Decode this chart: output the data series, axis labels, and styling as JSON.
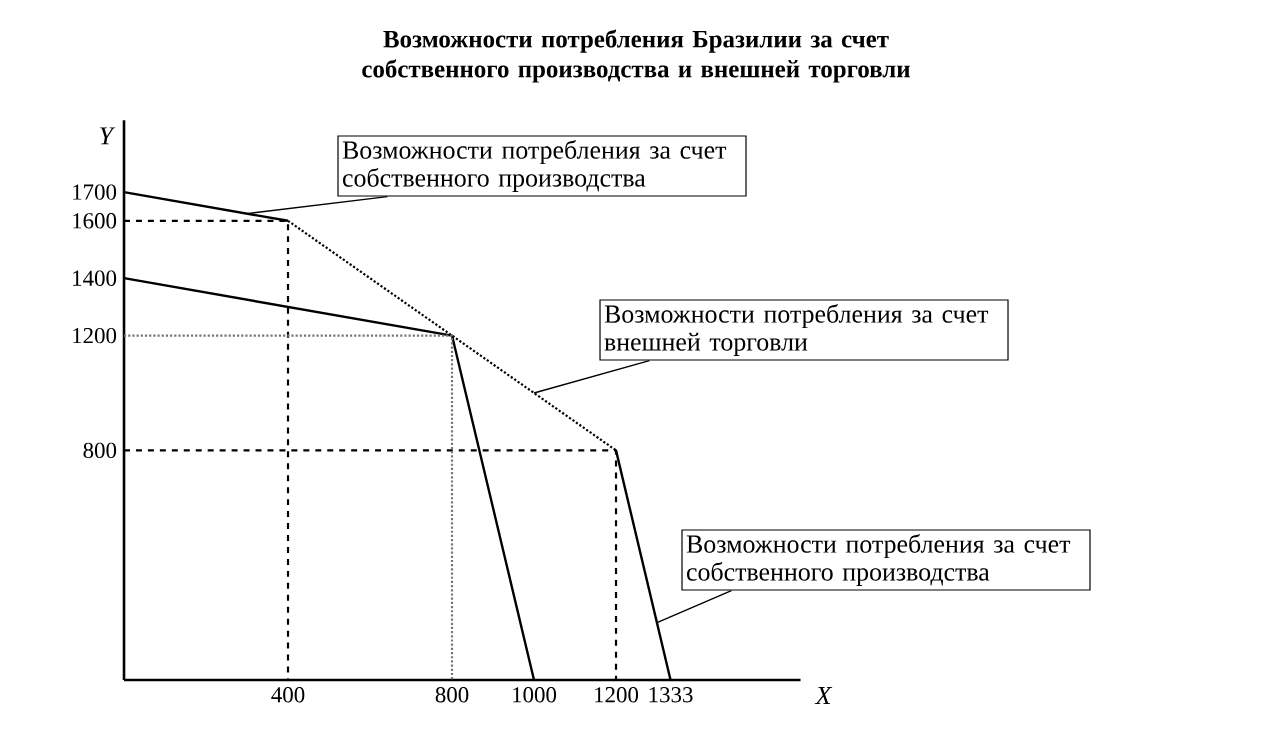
{
  "chart_data": {
    "type": "line",
    "title": "Возможности потребления Бразилии за счет собственного производства и внешней торговли",
    "xlabel": "X",
    "ylabel": "Y",
    "xlim": [
      0,
      1650
    ],
    "ylim": [
      0,
      1950
    ],
    "xticks": [
      400,
      800,
      1000,
      1200,
      1333
    ],
    "yticks": [
      800,
      1200,
      1400,
      1600,
      1700
    ],
    "grid": false,
    "series": [
      {
        "type": "line",
        "color": "#000000",
        "line_style": "solid",
        "x": [
          0,
          400
        ],
        "values": [
          1700,
          1600
        ]
      },
      {
        "type": "line",
        "color": "#000000",
        "line_style": "solid",
        "x": [
          1200,
          1333
        ],
        "values": [
          800,
          0
        ]
      },
      {
        "type": "line",
        "color": "#000000",
        "line_style": "solid",
        "x": [
          0,
          800,
          1000
        ],
        "values": [
          1400,
          1200,
          0
        ]
      },
      {
        "type": "line",
        "color": "#000000",
        "line_style": "dotted",
        "x": [
          400,
          800,
          1200
        ],
        "values": [
          1600,
          1200,
          800
        ]
      },
      {
        "type": "line",
        "color": "#000000",
        "line_style": "dashed",
        "x": [
          0,
          400,
          400
        ],
        "values": [
          1600,
          1600,
          0
        ]
      },
      {
        "type": "line",
        "color": "#000000",
        "line_style": "dashed",
        "x": [
          0,
          1200,
          1200
        ],
        "values": [
          800,
          800,
          0
        ]
      },
      {
        "type": "line",
        "color": "#777777",
        "line_style": "dotted",
        "x": [
          0,
          800,
          800
        ],
        "values": [
          1200,
          1200,
          0
        ]
      }
    ],
    "annotations": [
      {
        "text": "Возможности потребления за счет собственного производства",
        "x": 300,
        "y": 1625
      },
      {
        "text": "Возможности потребления за счет внешней торговли",
        "x": 1000,
        "y": 1000
      },
      {
        "text": "Возможности потребления за счет собственного производства",
        "x": 1300,
        "y": 200
      }
    ]
  }
}
